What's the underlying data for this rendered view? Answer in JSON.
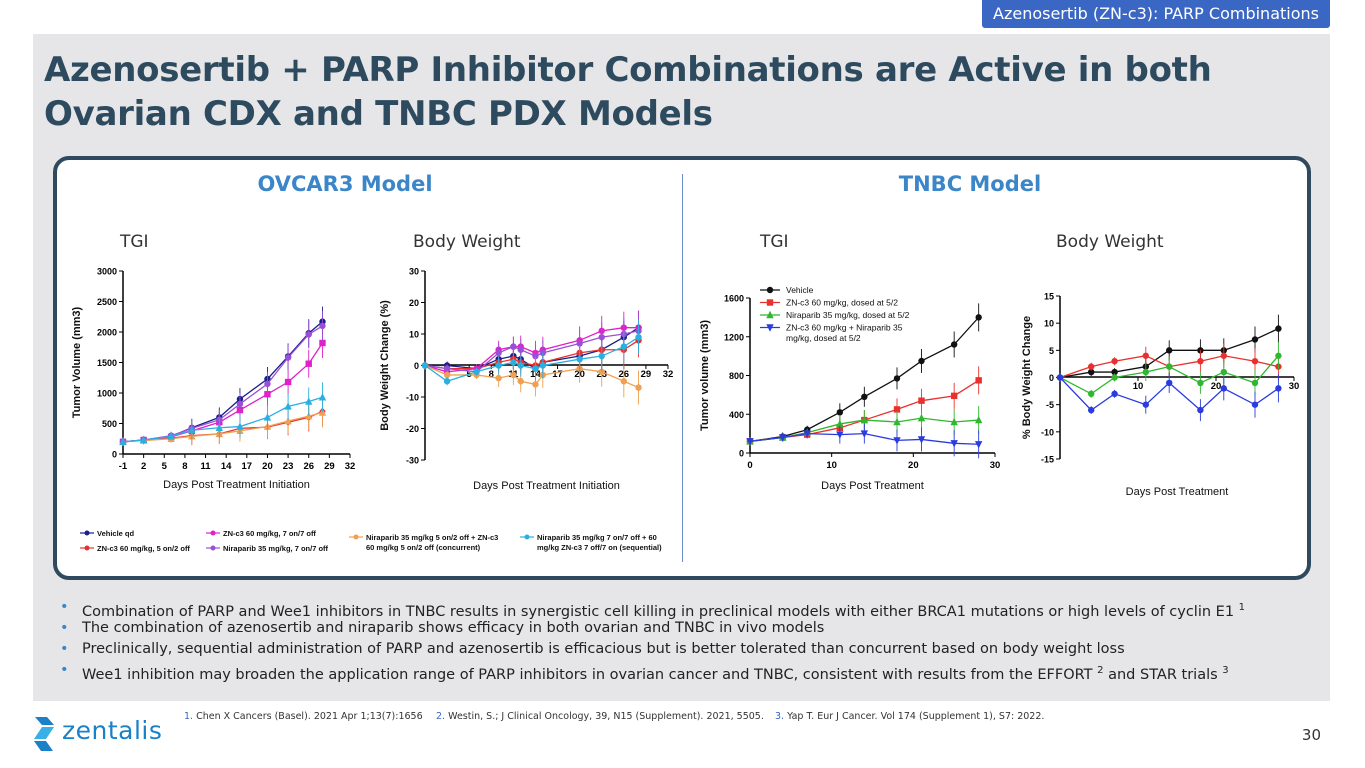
{
  "header_tag": "Azenosertib (ZN-c3): PARP Combinations",
  "title": "Azenosertib + PARP Inhibitor Combinations are Active in both Ovarian CDX and TNBC PDX Models",
  "ovcar": {
    "model_title": "OVCAR3 Model",
    "tgi_label": "TGI",
    "bw_label": "Body Weight"
  },
  "tnbc": {
    "model_title": "TNBC Model",
    "tgi_label": "TGI",
    "bw_label": "Body Weight"
  },
  "ovcar_legend": [
    {
      "label": "Vehicle qd",
      "color": "#1a1f8a"
    },
    {
      "label": "ZN-c3 60 mg/kg, 5 on/2 off",
      "color": "#e8312e"
    },
    {
      "label": "ZN-c3  60 mg/kg, 7 on/7 off",
      "color": "#e020c8"
    },
    {
      "label": "Niraparib 35 mg/kg, 7 on/7 off",
      "color": "#9b4fd6"
    },
    {
      "label": "Niraparib 35 mg/kg 5 on/2 off + ZN-c3",
      "label2": "60 mg/kg 5 on/2 off (concurrent)",
      "color": "#f0a050"
    },
    {
      "label": "Niraparib 35 mg/kg 7 on/7 off  + 60",
      "label2": "mg/kg ZN-c3 7 off/7 on (sequential)",
      "color": "#2ab0e0"
    }
  ],
  "chart_data": [
    {
      "type": "line",
      "title": "",
      "xlabel": "Days Post Treatment Initiation",
      "ylabel": "Tumor Volume (mm3)",
      "xticks": [
        "-1",
        "2",
        "5",
        "8",
        "11",
        "14",
        "17",
        "20",
        "23",
        "26",
        "29",
        "32"
      ],
      "xlim": [
        -1,
        32
      ],
      "ylim": [
        0,
        3000
      ],
      "yticks": [
        "0",
        "500",
        "1000",
        "1500",
        "2000",
        "2500",
        "3000"
      ],
      "x": [
        -1,
        2,
        6,
        9,
        13,
        16,
        20,
        23,
        26,
        28
      ],
      "series": [
        {
          "name": "Vehicle qd",
          "color": "#1a1f8a",
          "marker": "circle",
          "values": [
            200,
            230,
            290,
            430,
            600,
            900,
            1230,
            1600,
            1980,
            2170
          ]
        },
        {
          "name": "ZN-c3 60 mg/kg, 5 on/2 off",
          "color": "#e8312e",
          "marker": "diamond",
          "values": [
            200,
            225,
            260,
            300,
            330,
            420,
            440,
            520,
            600,
            700
          ]
        },
        {
          "name": "ZN-c3  60 mg/kg, 7 on/7 off",
          "color": "#e020c8",
          "marker": "square",
          "values": [
            200,
            230,
            280,
            380,
            520,
            720,
            980,
            1180,
            1480,
            1820
          ]
        },
        {
          "name": "Niraparib 35 mg/kg, 7 on/7 off",
          "color": "#9b4fd6",
          "marker": "circle",
          "values": [
            200,
            230,
            300,
            420,
            560,
            820,
            1150,
            1580,
            1960,
            2100
          ]
        },
        {
          "name": "Niraparib 35 mg/kg 5 on/2 off + ZN-c3 60 mg/kg 5 on/2 off (concurrent)",
          "color": "#f0a050",
          "marker": "triangle",
          "values": [
            200,
            220,
            250,
            290,
            330,
            380,
            450,
            540,
            620,
            680
          ]
        },
        {
          "name": "Niraparib 35 mg/kg 7 on/7 off  + 60 mg/kg ZN-c3 7 off/7 on (sequential)",
          "color": "#2ab0e0",
          "marker": "triangle",
          "values": [
            200,
            230,
            290,
            390,
            430,
            450,
            600,
            780,
            860,
            930
          ]
        }
      ]
    },
    {
      "type": "line",
      "title": "",
      "xlabel": "Days Post Treatment Initiation",
      "ylabel": "Body Weight Change (%)",
      "xticks": [
        "5",
        "8",
        "11",
        "14",
        "17",
        "20",
        "23",
        "26",
        "29",
        "32"
      ],
      "xlim": [
        -1,
        32
      ],
      "ylim": [
        -30,
        30
      ],
      "yticks": [
        "-30",
        "-20",
        "-10",
        "0",
        "10",
        "20",
        "30"
      ],
      "x": [
        -1,
        2,
        6,
        9,
        11,
        12,
        14,
        15,
        20,
        23,
        26,
        28
      ],
      "series": [
        {
          "name": "Vehicle qd",
          "color": "#1a1f8a",
          "values": [
            0,
            0,
            -1,
            2,
            3,
            2,
            -1,
            1,
            3,
            5,
            9,
            12
          ]
        },
        {
          "name": "ZN-c3 60 mg/kg, 5 on/2 off",
          "color": "#e8312e",
          "values": [
            0,
            -1,
            -1,
            1,
            2,
            1,
            0,
            1,
            4,
            5,
            5,
            8
          ]
        },
        {
          "name": "ZN-c3  60 mg/kg, 7 on/7 off",
          "color": "#e020c8",
          "values": [
            0,
            -2,
            -1,
            5,
            6,
            6,
            4,
            5,
            8,
            11,
            12,
            12
          ]
        },
        {
          "name": "Niraparib 35 mg/kg, 7 on/7 off",
          "color": "#9b4fd6",
          "values": [
            0,
            -1,
            -2,
            4,
            6,
            5,
            3,
            4,
            7,
            9,
            10,
            11
          ]
        },
        {
          "name": "Niraparib concurrent",
          "color": "#f0a050",
          "values": [
            0,
            -3,
            -3,
            -4,
            -3,
            -5,
            -6,
            -3,
            -1,
            -2,
            -5,
            -7
          ]
        },
        {
          "name": "Niraparib sequential",
          "color": "#2ab0e0",
          "values": [
            0,
            -5,
            -2,
            0,
            1,
            0,
            -1,
            0,
            2,
            3,
            6,
            9
          ]
        }
      ]
    },
    {
      "type": "line",
      "title": "",
      "xlabel": "Days Post Treatment",
      "ylabel": "Tumor volume (mm3)",
      "xticks": [
        "0",
        "10",
        "20",
        "30"
      ],
      "xlim": [
        0,
        30
      ],
      "ylim": [
        0,
        1600
      ],
      "yticks": [
        "0",
        "400",
        "800",
        "1200",
        "1600"
      ],
      "x": [
        0,
        4,
        7,
        11,
        14,
        18,
        21,
        25,
        28
      ],
      "series": [
        {
          "name": "Vehicle",
          "color": "#111111",
          "marker": "circle",
          "values": [
            120,
            170,
            240,
            420,
            580,
            770,
            950,
            1120,
            1400
          ]
        },
        {
          "name": "ZN-c3 60 mg/kg, dosed at 5/2",
          "color": "#e8312e",
          "marker": "square",
          "values": [
            120,
            160,
            190,
            260,
            340,
            450,
            540,
            590,
            750
          ]
        },
        {
          "name": "Niraparib 35 mg/kg, dosed at 5/2",
          "color": "#2fb82f",
          "marker": "triangle",
          "values": [
            120,
            160,
            210,
            300,
            340,
            320,
            360,
            320,
            340
          ]
        },
        {
          "name": "ZN-c3 60 mg/kg + Niraparib 35 mg/kg, dosed at 5/2",
          "color": "#2a3ce0",
          "marker": "triangle-down",
          "values": [
            120,
            160,
            200,
            190,
            200,
            130,
            140,
            100,
            90
          ]
        }
      ]
    },
    {
      "type": "line",
      "title": "",
      "xlabel": "Days Post Treatment",
      "ylabel": "% Body Weight Change",
      "xticks": [
        "10",
        "20",
        "30"
      ],
      "xlim": [
        0,
        30
      ],
      "ylim": [
        -15,
        15
      ],
      "yticks": [
        "-15",
        "-10",
        "-5",
        "0",
        "5",
        "10",
        "15"
      ],
      "x": [
        0,
        4,
        7,
        11,
        14,
        18,
        21,
        25,
        28
      ],
      "series": [
        {
          "name": "Vehicle",
          "color": "#111111",
          "values": [
            0,
            1,
            1,
            2,
            5,
            5,
            5,
            7,
            9
          ]
        },
        {
          "name": "ZN-c3 60 mg/kg, dosed at 5/2",
          "color": "#e8312e",
          "values": [
            0,
            2,
            3,
            4,
            2,
            3,
            4,
            3,
            2
          ]
        },
        {
          "name": "Niraparib 35 mg/kg, dosed at 5/2",
          "color": "#2fb82f",
          "values": [
            0,
            -3,
            0,
            1,
            2,
            -1,
            1,
            -1,
            4
          ]
        },
        {
          "name": "ZN-c3 60 mg/kg + Niraparib 35 mg/kg, dosed at 5/2",
          "color": "#2a3ce0",
          "values": [
            0,
            -6,
            -3,
            -5,
            -1,
            -6,
            -2,
            -5,
            -2
          ]
        }
      ]
    }
  ],
  "bullets": [
    {
      "text": "Combination of PARP and Wee1 inhibitors in TNBC results in synergistic cell killing in preclinical models with either BRCA1 mutations or high levels of cyclin E1",
      "sup": "1"
    },
    {
      "text": "The combination of azenosertib and niraparib shows efficacy in both ovarian and TNBC in vivo models",
      "sup": ""
    },
    {
      "text": "Preclinically, sequential administration of PARP and azenosertib is efficacious but is better tolerated than concurrent based on body weight loss",
      "sup": ""
    },
    {
      "text": "Wee1 inhibition may broaden the application range of PARP inhibitors in ovarian cancer and TNBC, consistent with results from the EFFORT",
      "sup": "2",
      "text2": " and STAR trials",
      "sup2": "3"
    }
  ],
  "refs": [
    {
      "num": "1.",
      "text": "Chen X Cancers (Basel). 2021 Apr 1;13(7):1656"
    },
    {
      "num": "2.",
      "text": "Westin, S.; J Clinical Oncology, 39, N15 (Supplement). 2021, 5505."
    },
    {
      "num": "3.",
      "text": "Yap T. Eur J Cancer. Vol 174 (Supplement 1), S7: 2022."
    }
  ],
  "logo_text": "zentalis",
  "page_number": "30"
}
